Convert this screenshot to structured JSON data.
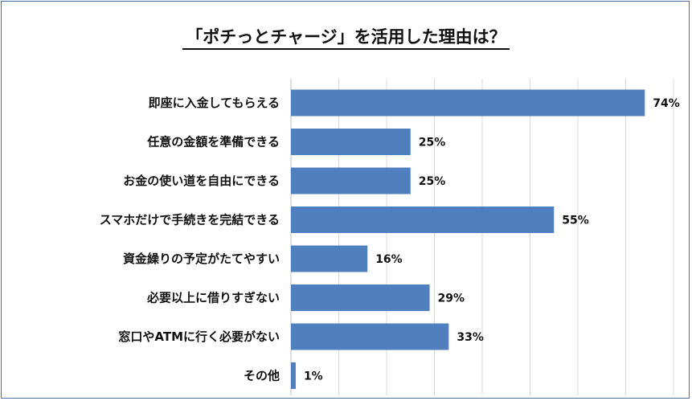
{
  "chart_data": {
    "type": "bar",
    "orientation": "horizontal",
    "title": "「ポチっとチャージ」を活用した理由は？",
    "categories": [
      "即座に入金してもらえる",
      "任意の金額を準備できる",
      "お金の使い道を自由にできる",
      "スマホだけで手続きを完結できる",
      "資金繰りの予定がたてやすい",
      "必要以上に借りすぎない",
      "窓口やATMに行く必要がない",
      "その他"
    ],
    "values": [
      74,
      25,
      25,
      55,
      16,
      29,
      33,
      1
    ],
    "value_labels": [
      "74%",
      "25%",
      "25%",
      "55%",
      "16%",
      "29%",
      "33%",
      "1%"
    ],
    "xlim": [
      0,
      80
    ],
    "grid": true,
    "bar_color": "#4f7fbf"
  }
}
